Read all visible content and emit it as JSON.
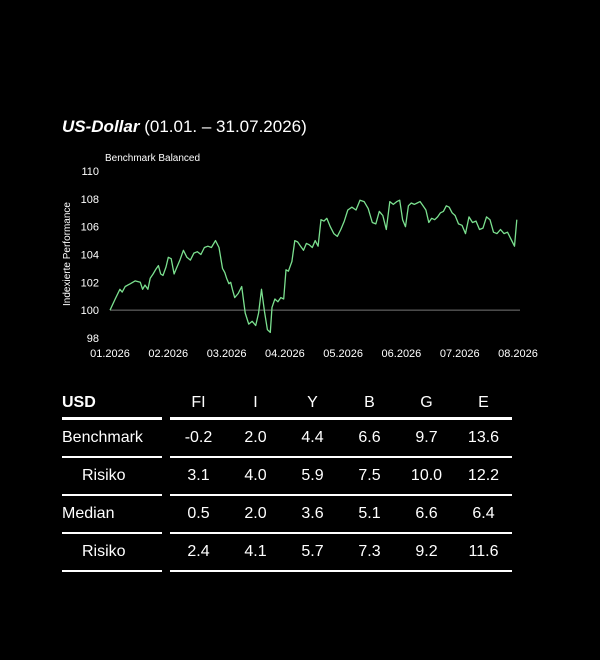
{
  "title": {
    "main": "US-Dollar",
    "period": "(01.01. – 31.07.2026)"
  },
  "colors": {
    "background": "#000000",
    "line": "#7be08f",
    "text": "#ffffff",
    "baseline": "#777777"
  },
  "chart_data": {
    "type": "line",
    "subtitle": "Benchmark Balanced",
    "ylabel": "Indexierte Performance",
    "ylim": [
      98,
      110
    ],
    "yticks": [
      98,
      100,
      102,
      104,
      106,
      108,
      110
    ],
    "xlim": [
      0,
      7
    ],
    "xticks": [
      {
        "pos": 0,
        "label": "01.2026"
      },
      {
        "pos": 1,
        "label": "02.2026"
      },
      {
        "pos": 2,
        "label": "03.2026"
      },
      {
        "pos": 3,
        "label": "04.2026"
      },
      {
        "pos": 4,
        "label": "05.2026"
      },
      {
        "pos": 5,
        "label": "06.2026"
      },
      {
        "pos": 6,
        "label": "07.2026"
      },
      {
        "pos": 7,
        "label": "08.2026"
      }
    ],
    "baseline": 100,
    "series": [
      {
        "x": [
          0,
          0.09,
          0.17,
          0.21,
          0.26,
          0.35,
          0.43,
          0.52,
          0.56,
          0.6,
          0.65,
          0.69,
          0.74,
          0.78,
          0.83,
          0.87,
          0.91,
          0.96,
          1.0,
          1.05,
          1.1,
          1.14,
          1.2,
          1.26,
          1.32,
          1.38,
          1.44,
          1.5,
          1.56,
          1.62,
          1.68,
          1.74,
          1.81,
          1.87,
          1.93,
          1.97,
          2.0,
          2.04,
          2.07,
          2.1,
          2.14,
          2.2,
          2.26,
          2.32,
          2.38,
          2.44,
          2.5,
          2.55,
          2.6,
          2.65,
          2.7,
          2.75,
          2.78,
          2.83,
          2.88,
          2.93,
          2.98,
          3.02,
          3.06,
          3.12,
          3.17,
          3.22,
          3.27,
          3.32,
          3.37,
          3.42,
          3.47,
          3.52,
          3.57,
          3.62,
          3.67,
          3.72,
          3.78,
          3.84,
          3.9,
          3.96,
          4.02,
          4.08,
          4.15,
          4.22,
          4.29,
          4.36,
          4.43,
          4.5,
          4.56,
          4.62,
          4.68,
          4.74,
          4.8,
          4.86,
          4.92,
          4.97,
          5.02,
          5.07,
          5.12,
          5.17,
          5.22,
          5.27,
          5.32,
          5.37,
          5.42,
          5.47,
          5.52,
          5.57,
          5.62,
          5.67,
          5.72,
          5.77,
          5.82,
          5.87,
          5.92,
          5.98,
          6.04,
          6.1,
          6.16,
          6.22,
          6.28,
          6.34,
          6.4,
          6.46,
          6.52,
          6.58,
          6.64,
          6.7,
          6.76,
          6.82,
          6.88,
          6.94,
          6.98
        ],
        "y": [
          100.0,
          100.8,
          101.5,
          101.3,
          101.7,
          101.9,
          102.1,
          102.0,
          101.5,
          101.8,
          101.5,
          102.3,
          102.6,
          102.9,
          103.2,
          102.6,
          102.5,
          103.1,
          103.8,
          103.7,
          102.6,
          103.0,
          103.6,
          104.3,
          103.8,
          103.6,
          104.1,
          104.2,
          104.0,
          104.5,
          104.6,
          104.5,
          105.0,
          104.5,
          103.0,
          102.7,
          102.3,
          101.9,
          102.0,
          101.5,
          100.9,
          101.2,
          101.7,
          99.8,
          99.0,
          99.2,
          98.9,
          99.8,
          101.5,
          99.9,
          98.6,
          98.4,
          100.2,
          100.8,
          100.6,
          100.9,
          100.8,
          102.9,
          102.8,
          103.5,
          105.0,
          104.9,
          104.6,
          104.3,
          104.8,
          104.7,
          104.5,
          105.0,
          104.6,
          106.5,
          106.4,
          106.6,
          106.0,
          105.5,
          105.3,
          105.8,
          106.4,
          107.2,
          107.4,
          107.2,
          107.9,
          107.8,
          107.3,
          106.3,
          106.2,
          107.1,
          106.8,
          105.8,
          107.8,
          107.6,
          107.8,
          107.9,
          106.5,
          106.0,
          107.5,
          107.7,
          107.6,
          107.7,
          107.8,
          107.5,
          107.2,
          106.3,
          106.6,
          106.5,
          106.7,
          107.0,
          107.1,
          107.5,
          107.4,
          107.0,
          106.8,
          106.2,
          106.1,
          105.5,
          106.7,
          106.3,
          106.4,
          105.8,
          105.9,
          106.7,
          106.5,
          105.6,
          105.5,
          105.8,
          105.5,
          105.6,
          105.1,
          104.6,
          106.5
        ]
      }
    ]
  },
  "table": {
    "header": [
      "USD",
      "FI",
      "I",
      "Y",
      "B",
      "G",
      "E"
    ],
    "rows": [
      {
        "label": "Benchmark",
        "indent": false,
        "values": [
          "-0.2",
          "2.0",
          "4.4",
          "6.6",
          "9.7",
          "13.6"
        ]
      },
      {
        "label": "Risiko",
        "indent": true,
        "values": [
          "3.1",
          "4.0",
          "5.9",
          "7.5",
          "10.0",
          "12.2"
        ]
      },
      {
        "label": "Median",
        "indent": false,
        "values": [
          "0.5",
          "2.0",
          "3.6",
          "5.1",
          "6.6",
          "6.4"
        ]
      },
      {
        "label": "Risiko",
        "indent": true,
        "values": [
          "2.4",
          "4.1",
          "5.7",
          "7.3",
          "9.2",
          "11.6"
        ]
      }
    ]
  }
}
